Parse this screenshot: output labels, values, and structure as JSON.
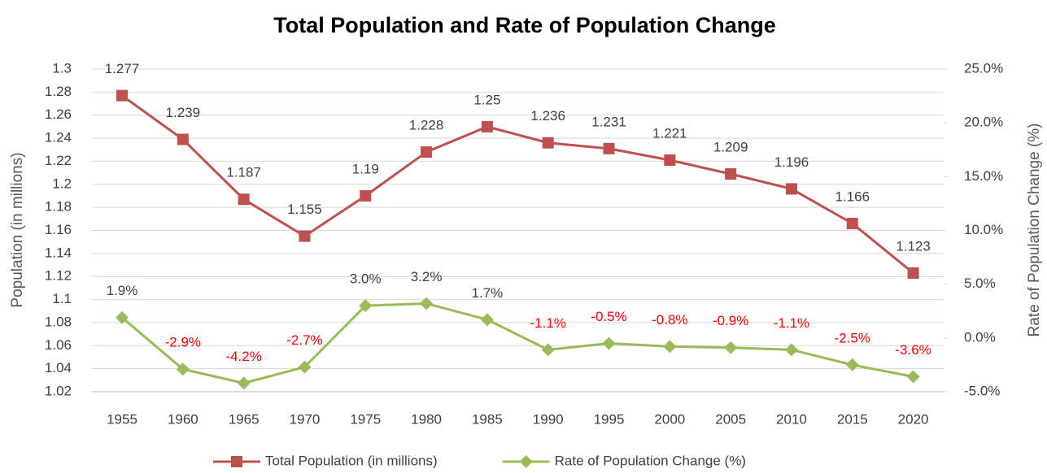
{
  "chart_data": {
    "type": "line",
    "title": "Total Population and Rate of Population Change",
    "ylabel": "Population (in millions)",
    "y2label": "Rate of Population Change (%)",
    "categories": [
      "1955",
      "1960",
      "1965",
      "1970",
      "1975",
      "1980",
      "1985",
      "1990",
      "1995",
      "2000",
      "2005",
      "2010",
      "2015",
      "2020"
    ],
    "series": [
      {
        "name": "Total Population (in millions)",
        "color": "#c0504d",
        "marker": "square",
        "values": [
          1.277,
          1.239,
          1.187,
          1.155,
          1.19,
          1.228,
          1.25,
          1.236,
          1.231,
          1.221,
          1.209,
          1.196,
          1.166,
          1.123
        ]
      },
      {
        "name": "Rate of Population Change (%)",
        "color": "#9bbb59",
        "marker": "diamond",
        "axis": "y2",
        "values": [
          1.9,
          -2.9,
          -4.2,
          -2.7,
          3.0,
          3.2,
          1.7,
          -1.1,
          -0.5,
          -0.8,
          -0.9,
          -1.1,
          -2.5,
          -3.6
        ],
        "value_labels": [
          "1.9%",
          "-2.9%",
          "-4.2%",
          "-2.7%",
          "3.0%",
          "3.2%",
          "1.7%",
          "-1.1%",
          "-0.5%",
          "-0.8%",
          "-0.9%",
          "-1.1%",
          "-2.5%",
          "-3.6%"
        ]
      }
    ],
    "ylim": [
      1.02,
      1.3
    ],
    "yticks": [
      1.02,
      1.04,
      1.06,
      1.08,
      1.1,
      1.12,
      1.14,
      1.16,
      1.18,
      1.2,
      1.22,
      1.24,
      1.26,
      1.28,
      1.3
    ],
    "y2lim": [
      -5,
      25
    ],
    "y2ticks": [
      {
        "value": -5,
        "label": "-5.0%"
      },
      {
        "value": 0,
        "label": "0.0%"
      },
      {
        "value": 5,
        "label": "5.0%"
      },
      {
        "value": 10,
        "label": "10.0%"
      },
      {
        "value": 15,
        "label": "15.0%"
      },
      {
        "value": 20,
        "label": "20.0%"
      },
      {
        "value": 25,
        "label": "25.0%"
      }
    ],
    "grid": true,
    "legend": "bottom",
    "negative_label_color": "#ff0000"
  }
}
